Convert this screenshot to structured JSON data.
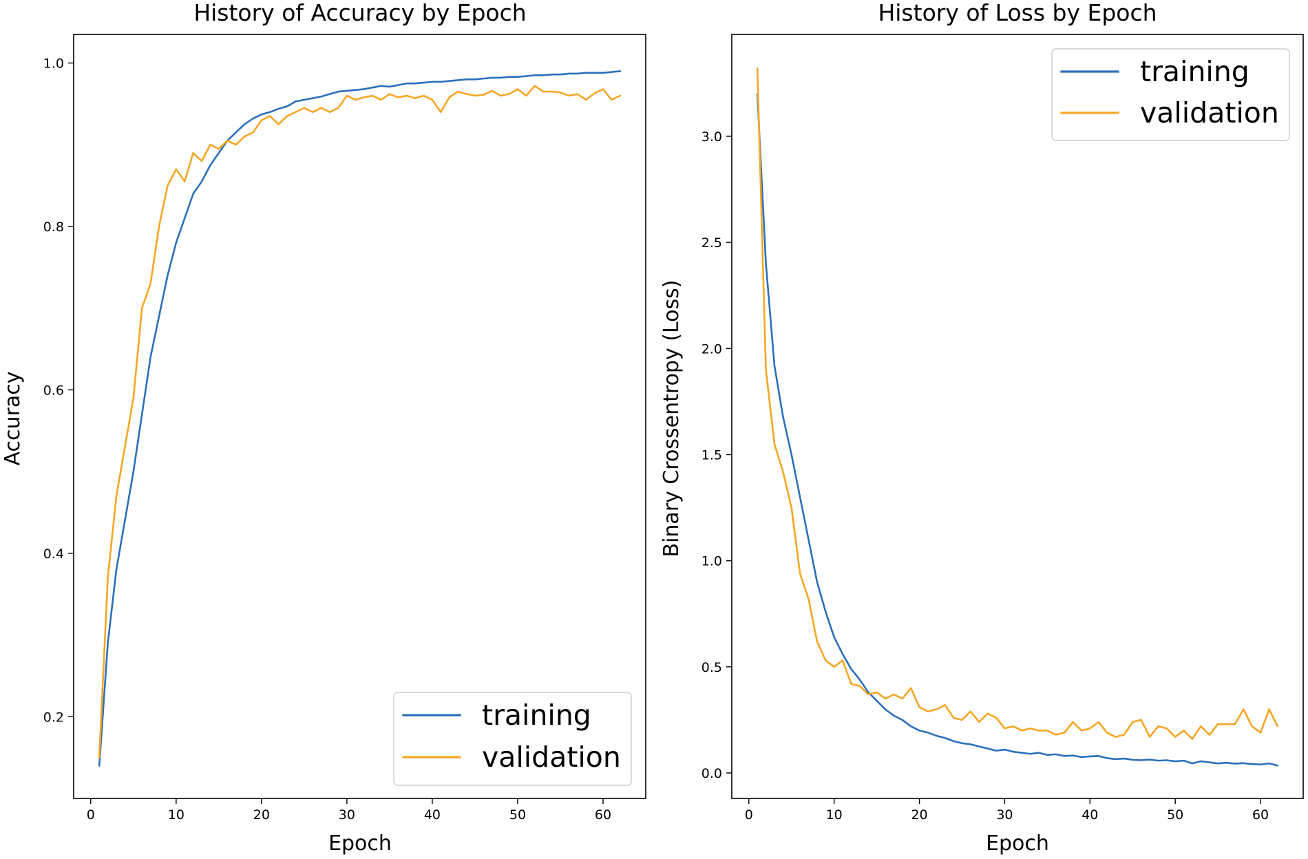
{
  "chart_data": [
    {
      "type": "line",
      "title": "History of Accuracy by Epoch",
      "xlabel": "Epoch",
      "ylabel": "Accuracy",
      "xlim": [
        -2,
        65
      ],
      "ylim": [
        0.1,
        1.035
      ],
      "xticks": [
        0,
        10,
        20,
        30,
        40,
        50,
        60
      ],
      "xtick_labels": [
        "0",
        "10",
        "20",
        "30",
        "40",
        "50",
        "60"
      ],
      "yticks": [
        0.2,
        0.4,
        0.6,
        0.8,
        1.0
      ],
      "ytick_labels": [
        "0.2",
        "0.4",
        "0.6",
        "0.8",
        "1.0"
      ],
      "legend_position": "lower-right",
      "legend_labels": [
        "training",
        "validation"
      ],
      "series": [
        {
          "name": "training",
          "color": "#2a6fbb",
          "x": [
            1,
            2,
            3,
            4,
            5,
            6,
            7,
            8,
            9,
            10,
            11,
            12,
            13,
            14,
            15,
            16,
            17,
            18,
            19,
            20,
            21,
            22,
            23,
            24,
            25,
            26,
            27,
            28,
            29,
            30,
            31,
            32,
            33,
            34,
            35,
            36,
            37,
            38,
            39,
            40,
            41,
            42,
            43,
            44,
            45,
            46,
            47,
            48,
            49,
            50,
            51,
            52,
            53,
            54,
            55,
            56,
            57,
            58,
            59,
            60,
            61,
            62
          ],
          "values": [
            0.14,
            0.29,
            0.38,
            0.44,
            0.5,
            0.57,
            0.64,
            0.69,
            0.74,
            0.78,
            0.81,
            0.84,
            0.855,
            0.875,
            0.89,
            0.905,
            0.915,
            0.925,
            0.932,
            0.937,
            0.94,
            0.944,
            0.947,
            0.953,
            0.955,
            0.957,
            0.959,
            0.962,
            0.965,
            0.966,
            0.967,
            0.968,
            0.97,
            0.972,
            0.971,
            0.973,
            0.975,
            0.975,
            0.976,
            0.977,
            0.977,
            0.978,
            0.979,
            0.98,
            0.98,
            0.981,
            0.982,
            0.982,
            0.983,
            0.983,
            0.984,
            0.985,
            0.985,
            0.986,
            0.986,
            0.987,
            0.987,
            0.988,
            0.988,
            0.988,
            0.989,
            0.99
          ]
        },
        {
          "name": "validation",
          "color": "#f5a623",
          "x": [
            1,
            2,
            3,
            4,
            5,
            6,
            7,
            8,
            9,
            10,
            11,
            12,
            13,
            14,
            15,
            16,
            17,
            18,
            19,
            20,
            21,
            22,
            23,
            24,
            25,
            26,
            27,
            28,
            29,
            30,
            31,
            32,
            33,
            34,
            35,
            36,
            37,
            38,
            39,
            40,
            41,
            42,
            43,
            44,
            45,
            46,
            47,
            48,
            49,
            50,
            51,
            52,
            53,
            54,
            55,
            56,
            57,
            58,
            59,
            60,
            61,
            62
          ],
          "values": [
            0.15,
            0.37,
            0.47,
            0.53,
            0.59,
            0.7,
            0.73,
            0.8,
            0.85,
            0.87,
            0.855,
            0.89,
            0.88,
            0.9,
            0.895,
            0.905,
            0.9,
            0.91,
            0.915,
            0.93,
            0.935,
            0.925,
            0.935,
            0.94,
            0.945,
            0.94,
            0.945,
            0.94,
            0.945,
            0.96,
            0.955,
            0.958,
            0.96,
            0.955,
            0.962,
            0.958,
            0.96,
            0.957,
            0.96,
            0.955,
            0.94,
            0.958,
            0.965,
            0.962,
            0.96,
            0.961,
            0.966,
            0.96,
            0.962,
            0.968,
            0.96,
            0.972,
            0.965,
            0.965,
            0.964,
            0.96,
            0.962,
            0.955,
            0.963,
            0.968,
            0.955,
            0.96
          ]
        }
      ]
    },
    {
      "type": "line",
      "title": "History of Loss by Epoch",
      "xlabel": "Epoch",
      "ylabel": "Binary Crossentropy (Loss)",
      "xlim": [
        -2,
        65
      ],
      "ylim": [
        -0.12,
        3.48
      ],
      "xticks": [
        0,
        10,
        20,
        30,
        40,
        50,
        60
      ],
      "xtick_labels": [
        "0",
        "10",
        "20",
        "30",
        "40",
        "50",
        "60"
      ],
      "yticks": [
        0.0,
        0.5,
        1.0,
        1.5,
        2.0,
        2.5,
        3.0
      ],
      "ytick_labels": [
        "0.0",
        "0.5",
        "1.0",
        "1.5",
        "2.0",
        "2.5",
        "3.0"
      ],
      "legend_position": "upper-right",
      "legend_labels": [
        "training",
        "validation"
      ],
      "series": [
        {
          "name": "training",
          "color": "#2a6fbb",
          "x": [
            1,
            2,
            3,
            4,
            5,
            6,
            7,
            8,
            9,
            10,
            11,
            12,
            13,
            14,
            15,
            16,
            17,
            18,
            19,
            20,
            21,
            22,
            23,
            24,
            25,
            26,
            27,
            28,
            29,
            30,
            31,
            32,
            33,
            34,
            35,
            36,
            37,
            38,
            39,
            40,
            41,
            42,
            43,
            44,
            45,
            46,
            47,
            48,
            49,
            50,
            51,
            52,
            53,
            54,
            55,
            56,
            57,
            58,
            59,
            60,
            61,
            62
          ],
          "values": [
            3.2,
            2.4,
            1.92,
            1.68,
            1.5,
            1.3,
            1.1,
            0.9,
            0.76,
            0.64,
            0.56,
            0.49,
            0.44,
            0.38,
            0.34,
            0.3,
            0.27,
            0.25,
            0.22,
            0.2,
            0.19,
            0.175,
            0.165,
            0.15,
            0.14,
            0.135,
            0.125,
            0.115,
            0.105,
            0.11,
            0.1,
            0.095,
            0.09,
            0.095,
            0.085,
            0.088,
            0.08,
            0.082,
            0.075,
            0.078,
            0.08,
            0.07,
            0.065,
            0.068,
            0.062,
            0.06,
            0.063,
            0.058,
            0.06,
            0.055,
            0.058,
            0.045,
            0.055,
            0.05,
            0.045,
            0.048,
            0.044,
            0.046,
            0.042,
            0.04,
            0.045,
            0.035
          ]
        },
        {
          "name": "validation",
          "color": "#f5a623",
          "x": [
            1,
            2,
            3,
            4,
            5,
            6,
            7,
            8,
            9,
            10,
            11,
            12,
            13,
            14,
            15,
            16,
            17,
            18,
            19,
            20,
            21,
            22,
            23,
            24,
            25,
            26,
            27,
            28,
            29,
            30,
            31,
            32,
            33,
            34,
            35,
            36,
            37,
            38,
            39,
            40,
            41,
            42,
            43,
            44,
            45,
            46,
            47,
            48,
            49,
            50,
            51,
            52,
            53,
            54,
            55,
            56,
            57,
            58,
            59,
            60,
            61,
            62
          ],
          "values": [
            3.32,
            1.9,
            1.55,
            1.42,
            1.25,
            0.94,
            0.82,
            0.62,
            0.53,
            0.5,
            0.53,
            0.42,
            0.41,
            0.37,
            0.38,
            0.35,
            0.37,
            0.35,
            0.4,
            0.31,
            0.29,
            0.3,
            0.32,
            0.26,
            0.25,
            0.29,
            0.24,
            0.28,
            0.26,
            0.21,
            0.22,
            0.2,
            0.21,
            0.2,
            0.2,
            0.18,
            0.19,
            0.24,
            0.2,
            0.21,
            0.24,
            0.19,
            0.17,
            0.18,
            0.24,
            0.25,
            0.17,
            0.22,
            0.21,
            0.17,
            0.2,
            0.16,
            0.22,
            0.18,
            0.23,
            0.23,
            0.23,
            0.3,
            0.22,
            0.19,
            0.3,
            0.22
          ]
        }
      ]
    }
  ]
}
